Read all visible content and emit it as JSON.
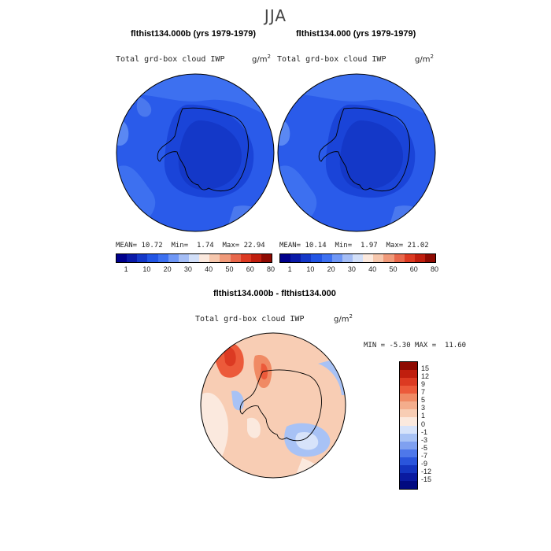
{
  "title": "JJA",
  "panels": [
    {
      "title": "flthist134.000b (yrs 1979-1979)",
      "variable": "Total grd-box cloud IWP",
      "units": "g/m",
      "units_sup": "2",
      "stats": {
        "mean_label": "MEAN=",
        "mean": "10.72",
        "min_label": "Min=",
        "min": "1.74",
        "max_label": "Max=",
        "max": "22.94"
      }
    },
    {
      "title": "flthist134.000 (yrs 1979-1979)",
      "variable": "Total grd-box cloud IWP",
      "units": "g/m",
      "units_sup": "2",
      "stats": {
        "mean_label": "MEAN=",
        "mean": "10.14",
        "min_label": "Min=",
        "min": "1.97",
        "max_label": "Max=",
        "max": "21.02"
      }
    }
  ],
  "abs_colorbar": {
    "colors": [
      "#00008c",
      "#0a1aa8",
      "#1438c8",
      "#2255e4",
      "#3d70f0",
      "#6f97f5",
      "#a4bdf5",
      "#d2dff8",
      "#fbe9de",
      "#f6c7ad",
      "#f09a7a",
      "#e8684c",
      "#dc3a22",
      "#c01e0e",
      "#8e0a02"
    ],
    "labels": [
      "1",
      "10",
      "20",
      "30",
      "40",
      "50",
      "60",
      "80"
    ]
  },
  "diff_panel": {
    "title": "flthist134.000b - flthist134.000",
    "variable": "Total grd-box cloud IWP",
    "units": "g/m",
    "units_sup": "2",
    "stats": {
      "min_label": "MIN =",
      "min": "-5.30",
      "max_label": "MAX =",
      "max": "11.60"
    }
  },
  "diff_colorbar": {
    "colors": [
      "#8e0a02",
      "#c01e0e",
      "#dc3a22",
      "#ec5a3a",
      "#f08a64",
      "#f4ad8c",
      "#f8cdb4",
      "#fbe9de",
      "#d7e3fa",
      "#a8c2f5",
      "#7fa0f0",
      "#4e78ea",
      "#2a55dc",
      "#1435c0",
      "#0a1aa0",
      "#020a80"
    ],
    "labels": [
      "15",
      "12",
      "9",
      "7",
      "5",
      "3",
      "1",
      "0",
      "-1",
      "-3",
      "-5",
      "-7",
      "-9",
      "-12",
      "-15"
    ]
  }
}
